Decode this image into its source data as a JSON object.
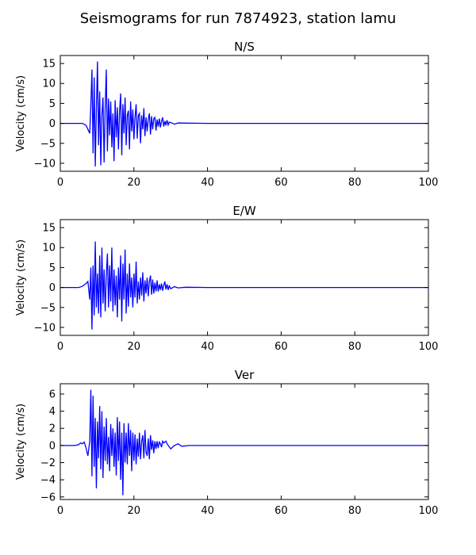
{
  "figure": {
    "title": "Seismograms for run 7874923, station lamu"
  },
  "colors": {
    "trace": "#0000ff",
    "axes": "#000000",
    "background": "#ffffff"
  },
  "chart_data": [
    {
      "type": "line",
      "title": "N/S",
      "xlabel": "",
      "ylabel": "Velocity (cm/s)",
      "xlim": [
        0,
        100
      ],
      "ylim": [
        -12,
        17
      ],
      "xticks": [
        0,
        20,
        40,
        60,
        80,
        100
      ],
      "yticks": [
        -10,
        -5,
        0,
        5,
        10,
        15
      ],
      "grid": false,
      "x": [
        0,
        5,
        6,
        7,
        7.5,
        8,
        8.3,
        8.6,
        8.9,
        9.2,
        9.5,
        9.8,
        10.1,
        10.4,
        10.7,
        11,
        11.3,
        11.6,
        11.9,
        12.2,
        12.5,
        12.8,
        13.1,
        13.4,
        13.7,
        14,
        14.3,
        14.6,
        14.9,
        15.2,
        15.5,
        15.8,
        16.1,
        16.4,
        16.7,
        17,
        17.3,
        17.6,
        17.9,
        18.2,
        18.5,
        18.8,
        19.1,
        19.4,
        19.7,
        20,
        20.3,
        20.6,
        20.9,
        21.2,
        21.5,
        21.8,
        22.1,
        22.4,
        22.7,
        23,
        23.3,
        23.6,
        23.9,
        24.2,
        24.5,
        24.8,
        25.1,
        25.4,
        25.7,
        26,
        26.3,
        26.6,
        26.9,
        27.2,
        27.5,
        27.8,
        28.1,
        28.4,
        28.7,
        29,
        29.3,
        29.6,
        30,
        31,
        32,
        34,
        40,
        100
      ],
      "y": [
        0,
        0,
        0,
        -0.5,
        -1.5,
        -2.5,
        4.5,
        13.5,
        -7.5,
        11.5,
        -10.8,
        3.5,
        15.5,
        -5.5,
        8,
        -10.5,
        2,
        6.5,
        -9.8,
        4,
        13.5,
        -7,
        6.2,
        -3,
        5.5,
        -6,
        2.5,
        -9.5,
        5.8,
        -3.5,
        4,
        -6.5,
        3,
        7.5,
        -8,
        4.8,
        -2.5,
        6.5,
        -5.5,
        2,
        3.2,
        -6.5,
        5.5,
        -2,
        3.5,
        -4,
        1.5,
        4.8,
        -3.8,
        2,
        2.5,
        -5,
        2,
        -1.5,
        3.8,
        -3.2,
        1.5,
        -2,
        1,
        2.5,
        -2.8,
        1.8,
        -1.5,
        1.2,
        1.5,
        -1.8,
        1,
        -0.8,
        1.2,
        -1,
        0.5,
        1.5,
        -0.8,
        0.6,
        -0.5,
        0.8,
        -0.4,
        0.3,
        0.2,
        -0.2,
        0.1,
        0.05,
        0,
        0
      ]
    },
    {
      "type": "line",
      "title": "E/W",
      "xlabel": "",
      "ylabel": "Velocity (cm/s)",
      "xlim": [
        0,
        100
      ],
      "ylim": [
        -12,
        17
      ],
      "xticks": [
        0,
        20,
        40,
        60,
        80,
        100
      ],
      "yticks": [
        -10,
        -5,
        0,
        5,
        10,
        15
      ],
      "grid": false,
      "x": [
        0,
        5,
        6,
        7,
        7.5,
        8,
        8.3,
        8.6,
        8.9,
        9.2,
        9.5,
        9.8,
        10.1,
        10.4,
        10.7,
        11,
        11.3,
        11.6,
        11.9,
        12.2,
        12.5,
        12.8,
        13.1,
        13.4,
        13.7,
        14,
        14.3,
        14.6,
        14.9,
        15.2,
        15.5,
        15.8,
        16.1,
        16.4,
        16.7,
        17,
        17.3,
        17.6,
        17.9,
        18.2,
        18.5,
        18.8,
        19.1,
        19.4,
        19.7,
        20,
        20.3,
        20.6,
        20.9,
        21.2,
        21.5,
        21.8,
        22.1,
        22.4,
        22.7,
        23,
        23.3,
        23.6,
        23.9,
        24.2,
        24.5,
        24.8,
        25.1,
        25.4,
        25.7,
        26,
        26.3,
        26.6,
        26.9,
        27.2,
        27.5,
        27.8,
        28.1,
        28.4,
        28.7,
        29,
        29.3,
        29.6,
        30,
        31,
        32,
        34,
        40,
        100
      ],
      "y": [
        0,
        0,
        0.3,
        1,
        1.5,
        -3,
        5,
        -10.5,
        5.5,
        -7,
        11.5,
        -5,
        3.5,
        -6.5,
        8,
        -7.5,
        10,
        -4,
        4.5,
        -6,
        3,
        8.5,
        -5,
        5.5,
        -3.5,
        10,
        -6,
        4.5,
        -4.5,
        3,
        -7.5,
        5,
        -3,
        8,
        -8.5,
        6,
        -3,
        9.5,
        -6.5,
        3.5,
        -4.8,
        6,
        -2.5,
        2.5,
        -5,
        3.5,
        -2.5,
        6.5,
        -4,
        1.5,
        -3,
        2.5,
        -2,
        3.8,
        -3.5,
        1.8,
        -1.5,
        2.5,
        -2.2,
        1.5,
        3,
        -1.8,
        2,
        -1.5,
        1.2,
        -1,
        1.8,
        -1,
        0.8,
        -0.6,
        1,
        -0.8,
        0.5,
        1.5,
        -0.5,
        0.8,
        -0.6,
        0.4,
        -0.3,
        0.2,
        -0.1,
        0.05,
        0,
        0
      ]
    },
    {
      "type": "line",
      "title": "Ver",
      "xlabel": "",
      "ylabel": "Velocity (cm/s)",
      "xlim": [
        0,
        100
      ],
      "ylim": [
        -6.3,
        7.2
      ],
      "xticks": [
        0,
        20,
        40,
        60,
        80,
        100
      ],
      "yticks": [
        -6,
        -4,
        -2,
        0,
        2,
        4,
        6
      ],
      "grid": false,
      "x": [
        0,
        4,
        5,
        5.5,
        6,
        6.5,
        7,
        7.5,
        8,
        8.3,
        8.6,
        8.9,
        9.2,
        9.5,
        9.8,
        10.1,
        10.4,
        10.7,
        11,
        11.3,
        11.6,
        11.9,
        12.2,
        12.5,
        12.8,
        13.1,
        13.4,
        13.7,
        14,
        14.3,
        14.6,
        14.9,
        15.2,
        15.5,
        15.8,
        16.1,
        16.4,
        16.7,
        17,
        17.3,
        17.6,
        17.9,
        18.2,
        18.5,
        18.8,
        19.1,
        19.4,
        19.7,
        20,
        20.3,
        20.6,
        20.9,
        21.2,
        21.5,
        21.8,
        22.1,
        22.4,
        22.7,
        23,
        23.3,
        23.6,
        23.9,
        24.2,
        24.5,
        24.8,
        25.1,
        25.4,
        25.7,
        26,
        26.3,
        26.6,
        26.9,
        27.2,
        27.5,
        27.8,
        28.1,
        28.4,
        28.7,
        29,
        30,
        31,
        32,
        33,
        35,
        40,
        100
      ],
      "y": [
        0,
        0,
        0.1,
        0.3,
        0.2,
        0.4,
        -0.3,
        -1.2,
        0.5,
        6.5,
        -3.6,
        5.8,
        -2.5,
        3.2,
        -5,
        2.8,
        -1.5,
        4.6,
        -2.8,
        4,
        -3.8,
        2.2,
        -1.8,
        3.2,
        -2.2,
        1,
        -3,
        2.5,
        -1.2,
        2,
        -2.5,
        1.5,
        -3.5,
        3.3,
        -1.8,
        2.8,
        -4,
        1.5,
        -5.8,
        2.6,
        -2,
        1.5,
        -2.2,
        2.6,
        -1.2,
        1.8,
        -3,
        1.5,
        -1.8,
        1.3,
        -2.2,
        0.8,
        -1.3,
        1.5,
        -1.6,
        0.5,
        1.2,
        -1.5,
        1.8,
        -0.8,
        -1.2,
        0.8,
        -1.6,
        1.2,
        -0.5,
        0.6,
        -0.9,
        0.5,
        -0.4,
        0.5,
        -0.3,
        0.4,
        0.2,
        -0.2,
        0.5,
        0.3,
        0.4,
        0.5,
        0.2,
        -0.4,
        0,
        0.2,
        -0.1,
        0,
        0,
        0
      ]
    }
  ]
}
